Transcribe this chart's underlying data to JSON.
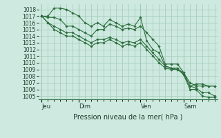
{
  "bg_color": "#ceeae0",
  "grid_color": "#a0c8b8",
  "line_color": "#2d6e3e",
  "marker_color": "#2d6e3e",
  "title": "Pression niveau de la mer( hPa )",
  "ylim": [
    1004.5,
    1018.8
  ],
  "yticks": [
    1005,
    1006,
    1007,
    1008,
    1009,
    1010,
    1011,
    1012,
    1013,
    1014,
    1015,
    1016,
    1017,
    1018
  ],
  "day_labels": [
    "Jeu",
    "Dim",
    "Ven",
    "Sam"
  ],
  "day_positions": [
    0,
    6,
    16,
    23
  ],
  "num_points": 29,
  "series": [
    [
      1017.0,
      1017.0,
      1018.2,
      1018.2,
      1018.0,
      1017.5,
      1017.0,
      1016.0,
      1015.5,
      1016.0,
      1015.5,
      1016.5,
      1016.0,
      1015.5,
      1015.8,
      1015.5,
      1016.8,
      1013.3,
      1012.0,
      1011.5,
      1009.5,
      1009.2,
      1009.2,
      1008.2,
      1006.5,
      1006.8,
      1006.8,
      1006.5,
      1006.5
    ],
    [
      1017.0,
      1016.8,
      1016.8,
      1016.5,
      1015.5,
      1015.5,
      1015.0,
      1014.5,
      1014.0,
      1015.0,
      1015.0,
      1015.8,
      1015.5,
      1015.0,
      1015.2,
      1015.0,
      1015.5,
      1014.5,
      1013.5,
      1012.5,
      1009.8,
      1009.8,
      1009.8,
      1008.5,
      1007.0,
      1006.5,
      1006.5,
      1006.5,
      1006.5
    ],
    [
      1017.0,
      1016.0,
      1015.5,
      1015.0,
      1014.5,
      1014.5,
      1014.0,
      1013.5,
      1013.0,
      1013.5,
      1013.5,
      1013.8,
      1013.5,
      1013.0,
      1013.2,
      1013.0,
      1013.5,
      1012.5,
      1011.5,
      1010.5,
      1009.5,
      1009.2,
      1009.0,
      1008.5,
      1006.5,
      1006.2,
      1005.5,
      1005.5,
      1005.0
    ],
    [
      1017.0,
      1016.0,
      1015.0,
      1014.5,
      1014.0,
      1014.0,
      1013.5,
      1013.0,
      1012.5,
      1013.0,
      1013.0,
      1013.5,
      1013.0,
      1012.5,
      1012.8,
      1012.5,
      1013.0,
      1012.0,
      1011.0,
      1010.0,
      1009.2,
      1009.0,
      1009.0,
      1008.2,
      1006.0,
      1006.0,
      1005.0,
      1004.8,
      1004.8
    ]
  ]
}
